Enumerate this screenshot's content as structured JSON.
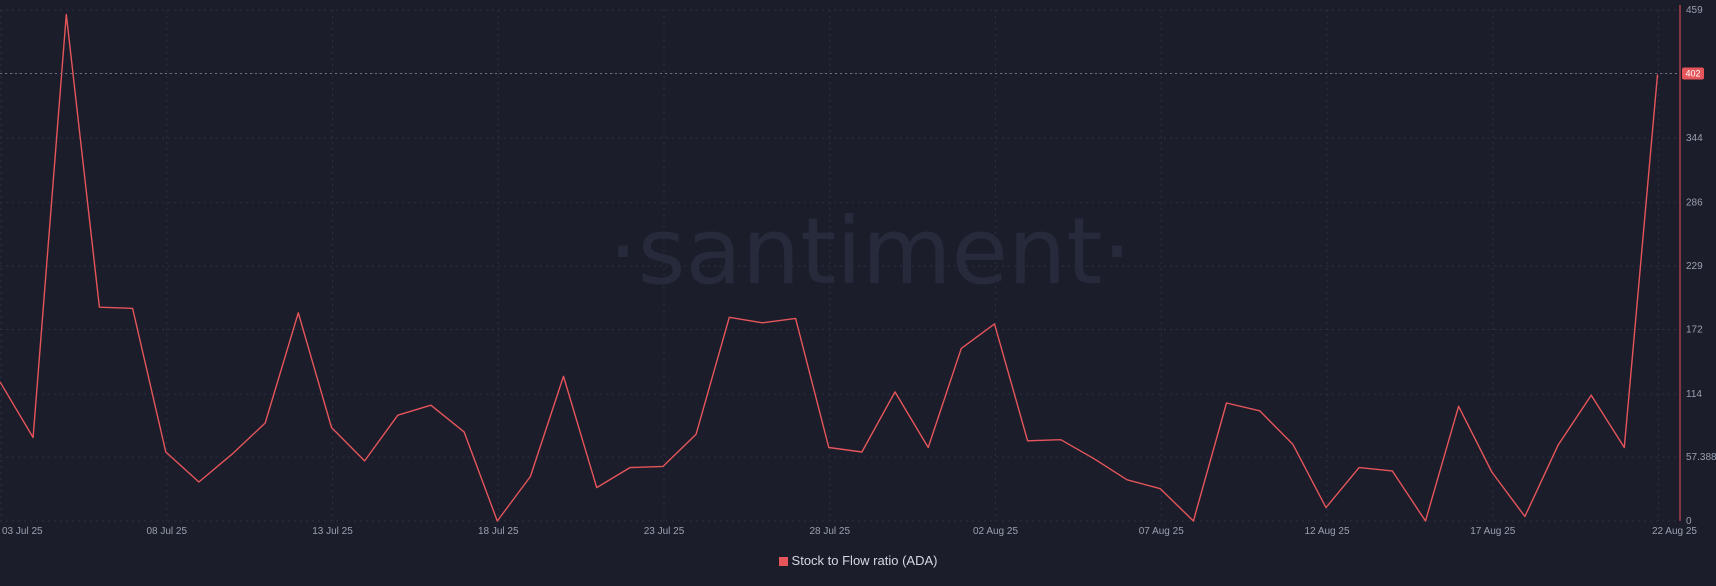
{
  "watermark": "·santiment·",
  "legend": {
    "label": "Stock to Flow ratio (ADA)",
    "color": "#e5555a"
  },
  "colors": {
    "background": "#1b1d2b",
    "line": "#e5555a",
    "grid": "#2b2f40",
    "axis_text": "#9aa0b0"
  },
  "chart_data": {
    "type": "line",
    "x_ticks": [
      "03 Jul 25",
      "08 Jul 25",
      "13 Jul 25",
      "18 Jul 25",
      "23 Jul 25",
      "28 Jul 25",
      "02 Aug 25",
      "07 Aug 25",
      "12 Aug 25",
      "17 Aug 25",
      "22 Aug 25"
    ],
    "y_ticks": [
      "459",
      "402",
      "344",
      "286",
      "229",
      "172",
      "114",
      "57.388",
      "0"
    ],
    "ylim": [
      0,
      459
    ],
    "last_value_label": "402",
    "grid": true,
    "series": [
      {
        "name": "Stock to Flow ratio (ADA)",
        "x_start_date": "2025-07-02",
        "x_step_days": 1,
        "values": [
          125,
          75,
          455,
          192,
          191,
          62,
          35,
          60,
          88,
          187,
          84,
          54,
          95,
          104,
          80,
          0,
          40,
          130,
          30,
          48,
          49,
          78,
          183,
          178,
          182,
          66,
          62,
          116,
          66,
          155,
          177,
          72,
          73,
          56,
          37,
          29,
          0,
          106,
          99,
          69,
          12,
          48,
          45,
          0,
          103,
          44,
          4,
          68,
          113,
          66,
          401
        ]
      }
    ]
  }
}
